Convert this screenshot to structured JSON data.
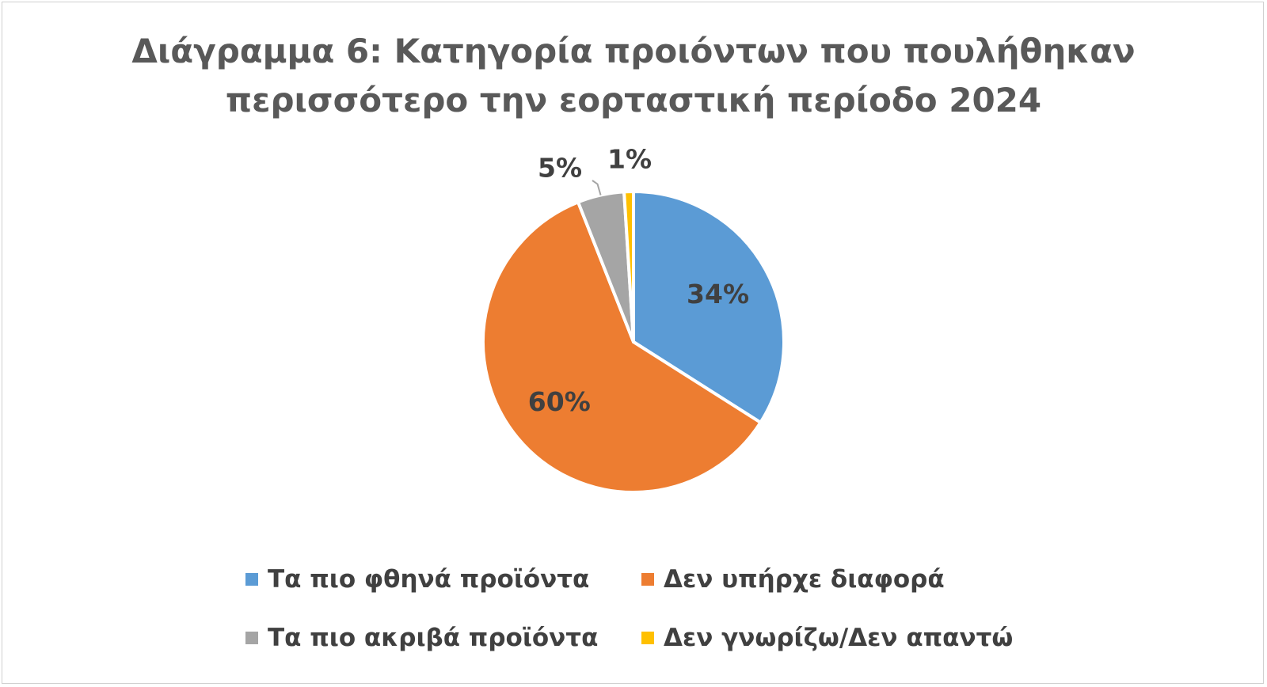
{
  "chart_data": {
    "type": "pie",
    "title_lines": [
      "Διάγραμμα 6: Κατηγορία προιόντων που πουλήθηκαν",
      "περισσότερο την εορταστική περίοδο 2024"
    ],
    "categories": [
      "Τα πιο φθηνά προϊόντα",
      "Δεν υπήρχε διαφορά",
      "Τα πιο ακριβά προϊόντα",
      "Δεν γνωρίζω/Δεν απαντώ"
    ],
    "values": [
      34,
      60,
      5,
      1
    ],
    "data_labels": [
      "34%",
      "60%",
      "5%",
      "1%"
    ],
    "colors": [
      "#5B9BD5",
      "#ED7D31",
      "#A5A5A5",
      "#FFC000"
    ],
    "legend_position": "bottom"
  }
}
